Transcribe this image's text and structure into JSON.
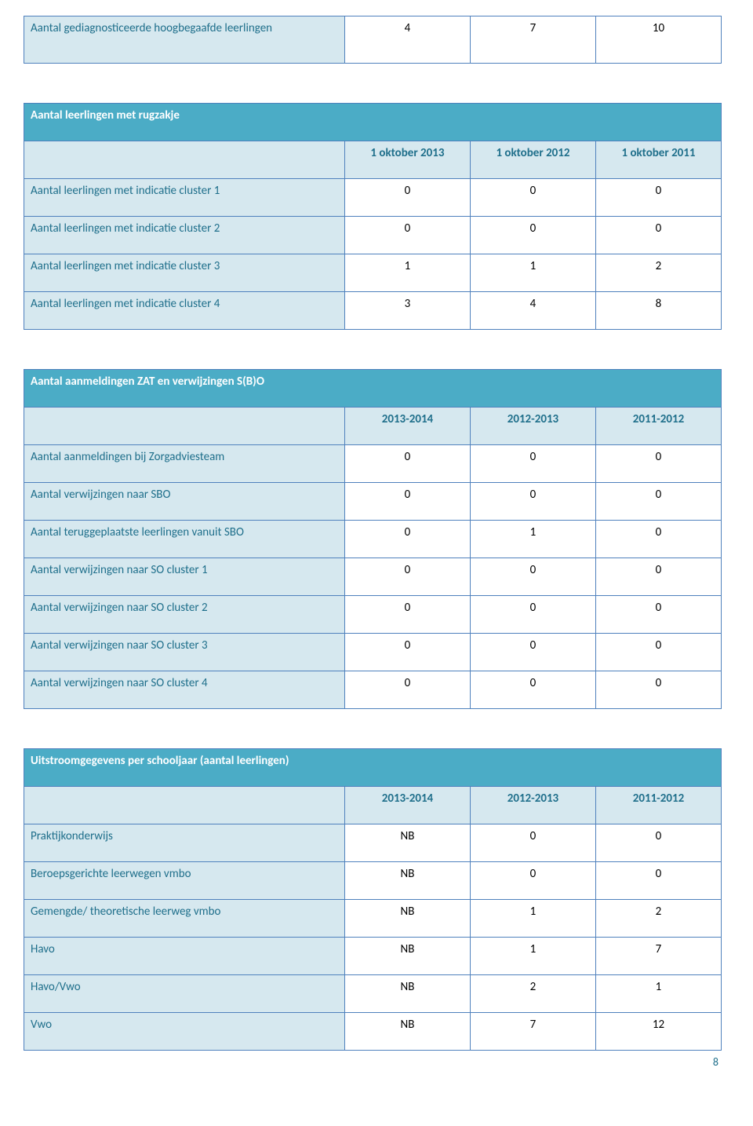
{
  "colors": {
    "header_bg": "#4bacc6",
    "header_fg": "#ffffff",
    "cell_bg": "#d6e8ef",
    "cell_fg": "#1f6f8b",
    "border": "#4f81bd",
    "body_bg": "#ffffff",
    "text": "#000000"
  },
  "tableTop": {
    "label": "Aantal gediagnosticeerde hoogbegaafde leerlingen",
    "values": [
      "4",
      "7",
      "10"
    ]
  },
  "section1": {
    "title": "Aantal leerlingen met rugzakje",
    "columns": [
      "1 oktober 2013",
      "1 oktober 2012",
      "1 oktober 2011"
    ],
    "rows": [
      {
        "label": "Aantal leerlingen met indicatie cluster 1",
        "values": [
          "0",
          "0",
          "0"
        ]
      },
      {
        "label": "Aantal leerlingen met indicatie cluster 2",
        "values": [
          "0",
          "0",
          "0"
        ]
      },
      {
        "label": "Aantal leerlingen met indicatie cluster 3",
        "values": [
          "1",
          "1",
          "2"
        ]
      },
      {
        "label": "Aantal leerlingen met indicatie cluster 4",
        "values": [
          "3",
          "4",
          "8"
        ]
      }
    ]
  },
  "section2": {
    "title": "Aantal aanmeldingen ZAT en verwijzingen S(B)O",
    "columns": [
      "2013-2014",
      "2012-2013",
      "2011-2012"
    ],
    "rows": [
      {
        "label": "Aantal aanmeldingen bij Zorgadviesteam",
        "values": [
          "0",
          "0",
          "0"
        ]
      },
      {
        "label": "Aantal verwijzingen naar SBO",
        "values": [
          "0",
          "0",
          "0"
        ]
      },
      {
        "label": "Aantal teruggeplaatste leerlingen vanuit SBO",
        "values": [
          "0",
          "1",
          "0"
        ]
      },
      {
        "label": "Aantal verwijzingen naar SO cluster 1",
        "values": [
          "0",
          "0",
          "0"
        ]
      },
      {
        "label": "Aantal verwijzingen naar SO cluster 2",
        "values": [
          "0",
          "0",
          "0"
        ]
      },
      {
        "label": "Aantal verwijzingen naar SO cluster 3",
        "values": [
          "0",
          "0",
          "0"
        ]
      },
      {
        "label": "Aantal verwijzingen naar SO cluster 4",
        "values": [
          "0",
          "0",
          "0"
        ]
      }
    ]
  },
  "section3": {
    "title": "Uitstroomgegevens per schooljaar  (aantal leerlingen)",
    "columns": [
      "2013-2014",
      "2012-2013",
      "2011-2012"
    ],
    "rows": [
      {
        "label": "Praktijkonderwijs",
        "values": [
          "NB",
          "0",
          "0"
        ]
      },
      {
        "label": "Beroepsgerichte leerwegen vmbo",
        "values": [
          "NB",
          "0",
          "0"
        ]
      },
      {
        "label": "Gemengde/ theoretische leerweg vmbo",
        "values": [
          "NB",
          "1",
          "2"
        ]
      },
      {
        "label": "Havo",
        "values": [
          "NB",
          "1",
          "7"
        ]
      },
      {
        "label": "Havo/Vwo",
        "values": [
          "NB",
          "2",
          "1"
        ]
      },
      {
        "label": "Vwo",
        "values": [
          "NB",
          "7",
          "12"
        ]
      }
    ]
  },
  "pageNumber": "8"
}
